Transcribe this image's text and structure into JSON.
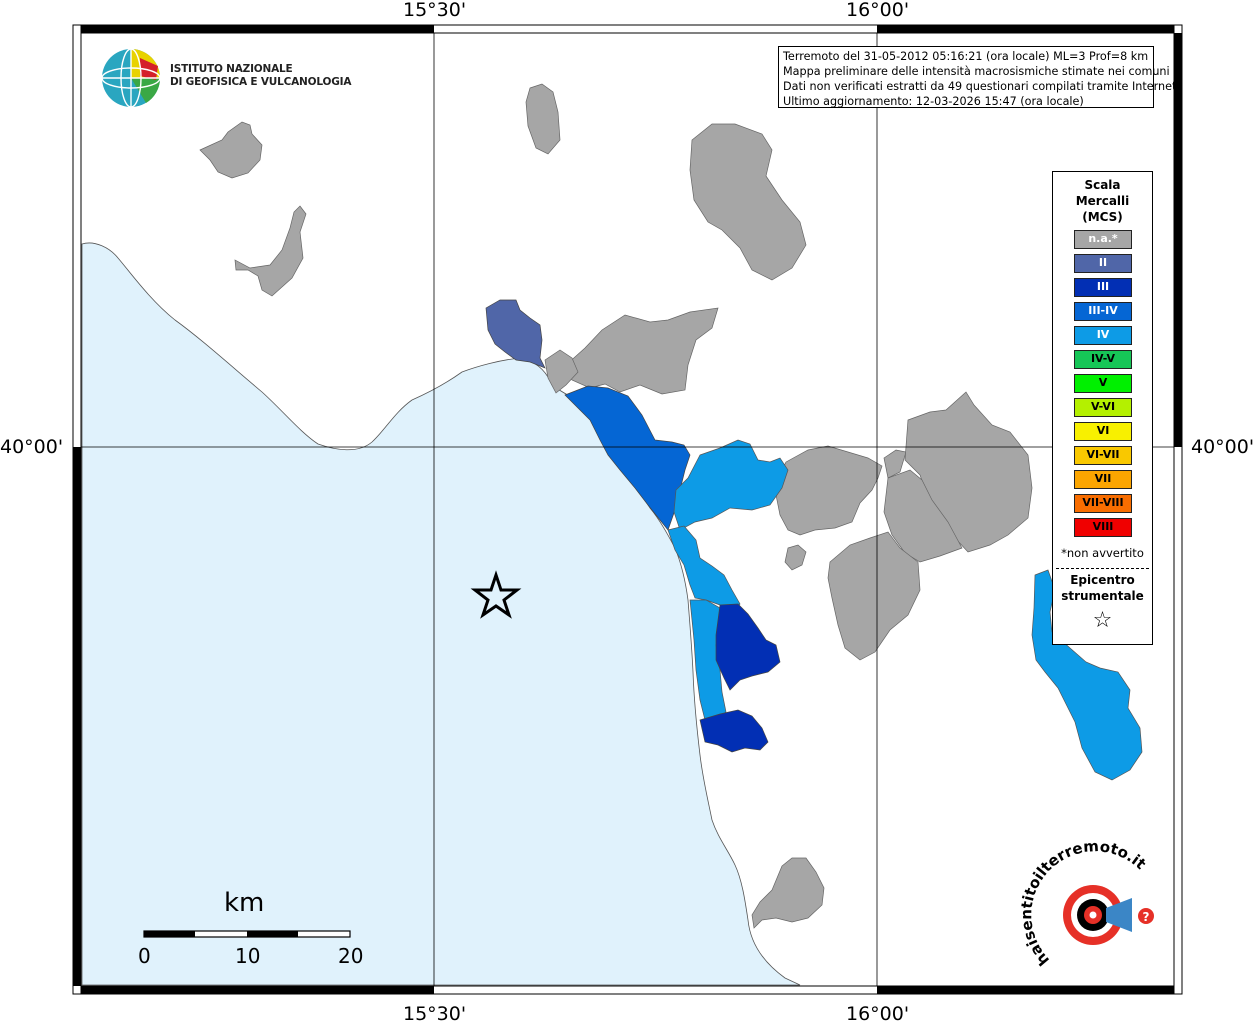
{
  "map": {
    "coords": {
      "top_left": "15°30'",
      "top_right": "16°00'",
      "bottom_left": "15°30'",
      "bottom_right": "16°00'",
      "left": "40°00'",
      "right": "40°00'"
    },
    "info_lines": [
      "Terremoto del 31-05-2012 05:16:21 (ora locale) ML=3 Prof=8 km",
      "Mappa preliminare delle intensità macrosismiche stimate nei comuni",
      "Dati non verificati estratti da 49 questionari compilati tramite Internet.",
      "Ultimo aggiornamento: 12-03-2026 15:47 (ora locale)"
    ],
    "institute": {
      "line1": "ISTITUTO NAZIONALE",
      "line2": "DI GEOFISICA E VULCANOLOGIA"
    },
    "legend": {
      "title_lines": [
        "Scala",
        "Mercalli",
        "(MCS)"
      ],
      "items": [
        {
          "label": "n.a.*",
          "color": "#a6a6a6",
          "text_color": "#ffffff"
        },
        {
          "label": "II",
          "color": "#5066a8",
          "text_color": "#ffffff"
        },
        {
          "label": "III",
          "color": "#022fb4",
          "text_color": "#ffffff"
        },
        {
          "label": "III-IV",
          "color": "#0566d4",
          "text_color": "#ffffff"
        },
        {
          "label": "IV",
          "color": "#0d9be6",
          "text_color": "#ffffff"
        },
        {
          "label": "IV-V",
          "color": "#16c657",
          "text_color": "#000000"
        },
        {
          "label": "V",
          "color": "#00f000",
          "text_color": "#000000"
        },
        {
          "label": "V-VI",
          "color": "#b4f000",
          "text_color": "#000000"
        },
        {
          "label": "VI",
          "color": "#f8f000",
          "text_color": "#000000"
        },
        {
          "label": "VI-VII",
          "color": "#f9c800",
          "text_color": "#000000"
        },
        {
          "label": "VII",
          "color": "#fba500",
          "text_color": "#000000"
        },
        {
          "label": "VII-VIII",
          "color": "#f86d00",
          "text_color": "#000000"
        },
        {
          "label": "VIII",
          "color": "#f00000",
          "text_color": "#000000"
        }
      ],
      "note": "*non avvertito",
      "epicenter_lines": [
        "Epicentro",
        "strumentale"
      ],
      "epicenter_symbol": "☆"
    },
    "scale_bar": {
      "unit": "km",
      "ticks": [
        "0",
        "10",
        "20"
      ]
    },
    "site_logo_text": "haisentitoilterremoto.it",
    "colors": {
      "sea": "#e0f2fc",
      "na": "#a6a6a6",
      "II": "#5066a8",
      "III": "#022fb4",
      "III-IV": "#0566d4",
      "IV": "#0d9be6"
    }
  }
}
